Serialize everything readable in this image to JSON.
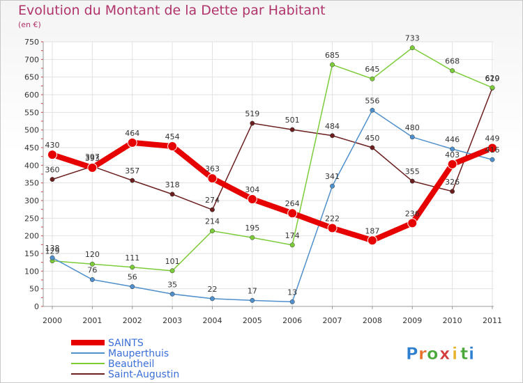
{
  "title": "Evolution du Montant de la Dette par Habitant",
  "subtitle": "(en €)",
  "logo": {
    "text": "Proxiti",
    "letters": [
      "P",
      "r",
      "o",
      "x",
      "i",
      "t",
      "i"
    ],
    "colors": [
      "#2e7fd0",
      "#e8702a",
      "#4aa83a",
      "#d43c3c",
      "#e8b32a",
      "#4aa83a",
      "#2e7fd0"
    ]
  },
  "chart_data": {
    "type": "line",
    "x": [
      "2000",
      "2001",
      "2002",
      "2003",
      "2004",
      "2005",
      "2006",
      "2007",
      "2008",
      "2009",
      "2010",
      "2011"
    ],
    "ylim": [
      0,
      750
    ],
    "yticks": [
      0,
      50,
      100,
      150,
      200,
      250,
      300,
      350,
      400,
      450,
      500,
      550,
      600,
      650,
      700,
      750
    ],
    "grid": true,
    "legend_position": "bottom-left",
    "series": [
      {
        "name": "SAINTS",
        "color": "#e60000",
        "values": [
          430,
          393,
          464,
          454,
          363,
          304,
          264,
          222,
          187,
          236,
          403,
          449
        ]
      },
      {
        "name": "Mauperthuis",
        "color": "#4f8fcc",
        "values": [
          138,
          76,
          56,
          35,
          22,
          17,
          13,
          341,
          556,
          480,
          446,
          416
        ]
      },
      {
        "name": "Beautheil",
        "color": "#7ccc3a",
        "values": [
          129,
          120,
          111,
          101,
          214,
          195,
          174,
          685,
          645,
          733,
          668,
          620
        ]
      },
      {
        "name": "Saint-Augustin",
        "color": "#6b1f1f",
        "values": [
          360,
          397,
          357,
          318,
          274,
          519,
          501,
          484,
          450,
          355,
          326,
          619
        ]
      }
    ]
  }
}
